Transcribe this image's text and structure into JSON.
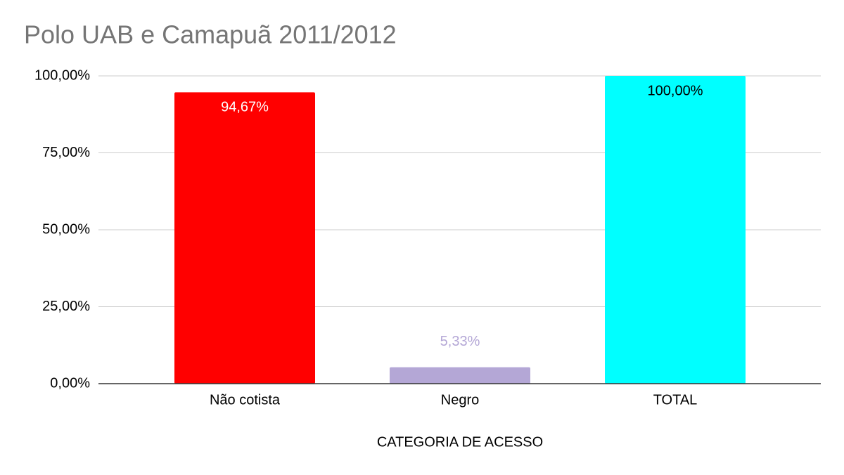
{
  "chart_data": {
    "type": "bar",
    "title": "Polo UAB e Camapuã 2011/2012",
    "x_label": "CATEGORIA DE ACESSO",
    "categories": [
      "Não cotista",
      "Negro",
      "TOTAL"
    ],
    "values": [
      94.67,
      5.33,
      100
    ],
    "value_labels": [
      "94,67%",
      "5,33%",
      "100,00%"
    ],
    "colors": [
      "#ff0000",
      "#b4a7d6",
      "#00ffff"
    ],
    "value_label_colors": [
      "#ffffff",
      "#b4a7d6",
      "#000000"
    ],
    "ylim": [
      0,
      100
    ],
    "yticks": [
      {
        "value": 0,
        "label": "0,00%"
      },
      {
        "value": 25,
        "label": "25,00%"
      },
      {
        "value": 50,
        "label": "50,00%"
      },
      {
        "value": 75,
        "label": "75,00%"
      },
      {
        "value": 100,
        "label": "100,00%"
      }
    ],
    "grid": true
  }
}
